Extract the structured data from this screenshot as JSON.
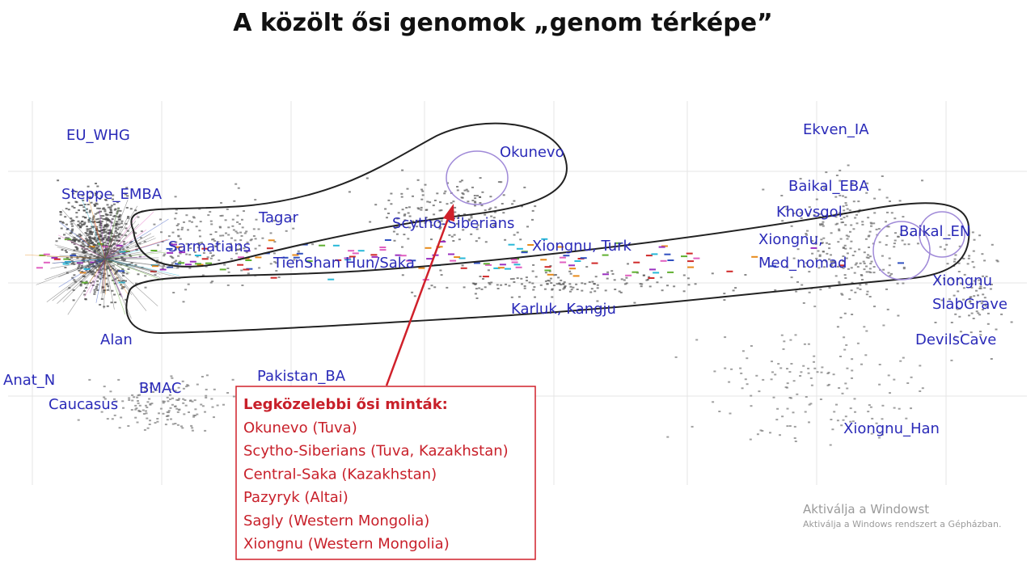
{
  "header": {
    "title": "A közölt ősi genomok „genom térképe”"
  },
  "populations": [
    "EU_WHG",
    "Steppe_EMBA",
    "Tagar",
    "Sarmatians",
    "Scytho-Siberians",
    "TienShan Hun/Saka",
    "Okunevo",
    "Xiongnu, Turk",
    "Karluk, Kangju",
    "Alan",
    "Anat_N",
    "Caucasus",
    "BMAC",
    "Pakistan_BA",
    "Ekven_IA",
    "Baikal_EBA",
    "Khovsgol",
    "Xiongnu,",
    "Med_nomad",
    "Baikal_EN",
    "Xiongnu",
    "SlabGrave",
    "DevilsCave",
    "Xiongnu_Han"
  ],
  "callout": {
    "heading": "Legközelebbi ősi minták:",
    "items": [
      "Okunevo (Tuva)",
      "Scytho-Siberians (Tuva, Kazakhstan)",
      "Central-Saka (Kazakhstan)",
      "Pazyryk (Altai)",
      "Sagly (Western Mongolia)",
      "Xiongnu (Western Mongolia)"
    ]
  },
  "watermark": {
    "line1": "Aktiválja a Windowst",
    "line2": "Aktiválja a Windows rendszert a Gépházban."
  }
}
